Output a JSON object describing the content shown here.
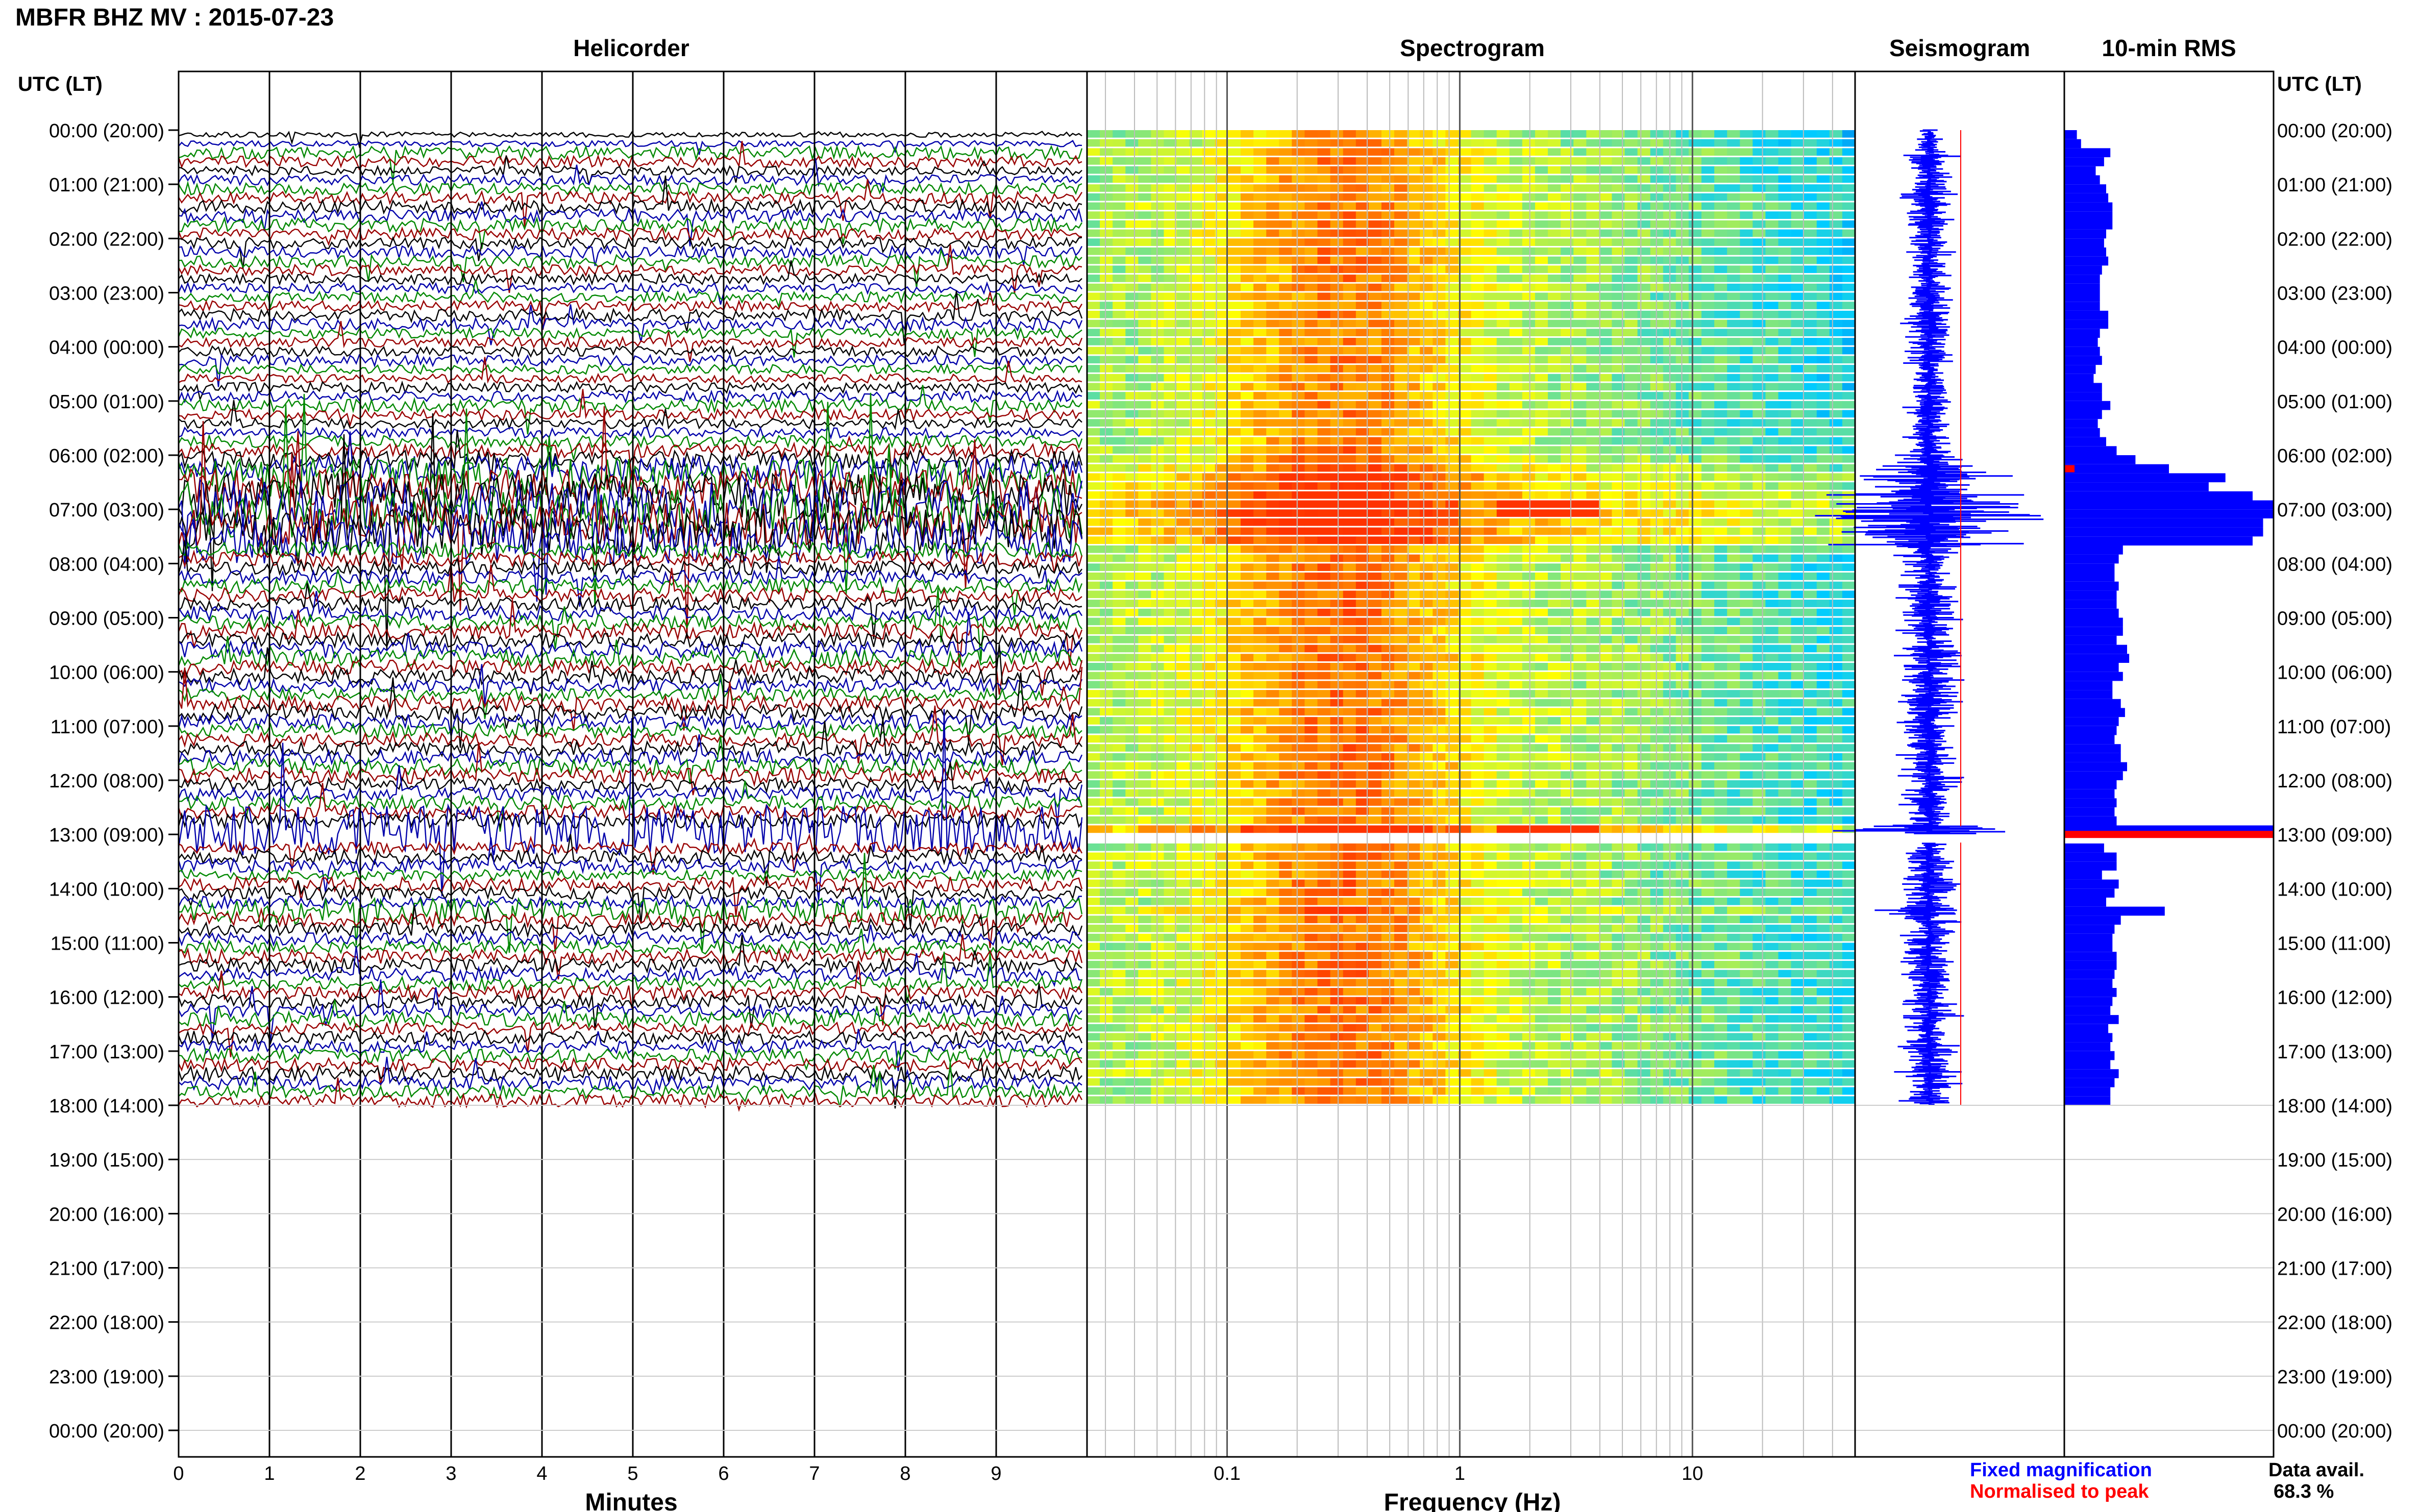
{
  "station_title": "MBFR BHZ MV : 2015-07-23",
  "utc_lt_label": "UTC (LT)",
  "panels": {
    "helicorder": "Helicorder",
    "spectrogram": "Spectrogram",
    "seismogram": "Seismogram",
    "rms": "10-min RMS"
  },
  "time_labels": [
    "00:00 (20:00)",
    "01:00 (21:00)",
    "02:00 (22:00)",
    "03:00 (23:00)",
    "04:00 (00:00)",
    "05:00 (01:00)",
    "06:00 (02:00)",
    "07:00 (03:00)",
    "08:00 (04:00)",
    "09:00 (05:00)",
    "10:00 (06:00)",
    "11:00 (07:00)",
    "12:00 (08:00)",
    "13:00 (09:00)",
    "14:00 (10:00)",
    "15:00 (11:00)",
    "16:00 (12:00)",
    "17:00 (13:00)",
    "18:00 (14:00)",
    "19:00 (15:00)",
    "20:00 (16:00)",
    "21:00 (17:00)",
    "22:00 (18:00)",
    "23:00 (19:00)",
    "00:00 (20:00)"
  ],
  "x_axes": {
    "helicorder": {
      "label": "Minutes",
      "ticks": [
        "0",
        "1",
        "2",
        "3",
        "4",
        "5",
        "6",
        "7",
        "8",
        "9"
      ],
      "range": [
        0,
        10
      ]
    },
    "spectrogram": {
      "label": "Frequency (Hz)",
      "ticks": [
        "0.1",
        "1",
        "10"
      ],
      "scale": "log",
      "range": [
        0.025,
        50
      ]
    }
  },
  "legend": {
    "fixed": "Fixed magnification",
    "normalised": "Normalised to peak",
    "fixed_color": "#0000ff",
    "normalised_color": "#ff0000"
  },
  "availability": {
    "label": "Data avail.",
    "value": "68.3 %"
  },
  "colors": {
    "trace_cycle": [
      "#000000",
      "#0000aa",
      "#008800",
      "#990000"
    ],
    "spec_low": "#0000cc",
    "spec_mid": "#00ccff",
    "spec_high": "#ffff00",
    "spec_peak": "#ff3300",
    "bar": "#0000ff",
    "peak_marker": "#ff0000"
  },
  "chart_data": {
    "type": "bar",
    "title": "10-min RMS",
    "y_axis": "UTC hour of day",
    "ylim": [
      0,
      24
    ],
    "grid": true,
    "data_end_hour": 18.0,
    "gaps_hours": [
      [
        12.85,
        13.15
      ]
    ],
    "helicorder_lines_per_hour": 6,
    "rms_10min_relative": [
      0.06,
      0.08,
      0.22,
      0.19,
      0.15,
      0.17,
      0.2,
      0.21,
      0.23,
      0.23,
      0.23,
      0.2,
      0.19,
      0.2,
      0.21,
      0.18,
      0.17,
      0.17,
      0.17,
      0.17,
      0.21,
      0.21,
      0.17,
      0.16,
      0.17,
      0.18,
      0.15,
      0.14,
      0.18,
      0.18,
      0.22,
      0.18,
      0.16,
      0.17,
      0.2,
      0.25,
      0.34,
      0.5,
      0.77,
      0.69,
      0.9,
      1.0,
      1.0,
      0.95,
      0.95,
      0.9,
      0.28,
      0.26,
      0.24,
      0.24,
      0.26,
      0.25,
      0.25,
      0.26,
      0.28,
      0.28,
      0.25,
      0.3,
      0.31,
      0.26,
      0.28,
      0.23,
      0.23,
      0.27,
      0.29,
      0.26,
      0.25,
      0.24,
      0.27,
      0.27,
      0.3,
      0.28,
      0.25,
      0.24,
      0.25,
      0.24,
      0.25,
      1.0,
      0.0,
      0.19,
      0.25,
      0.25,
      0.18,
      0.26,
      0.24,
      0.2,
      0.48,
      0.27,
      0.24,
      0.23,
      0.23,
      0.25,
      0.25,
      0.24,
      0.23,
      0.25,
      0.23,
      0.22,
      0.26,
      0.21,
      0.23,
      0.22,
      0.24,
      0.22,
      0.26,
      0.24,
      0.22,
      0.22
    ],
    "peak_normalised_hours": [
      6.25,
      13.0
    ],
    "spectrogram_peak": {
      "freq_hz": [
        1.5,
        4.0
      ],
      "time_utc": "06:00"
    },
    "seismogram_events_utc": [
      "06:00",
      "15:00"
    ]
  }
}
